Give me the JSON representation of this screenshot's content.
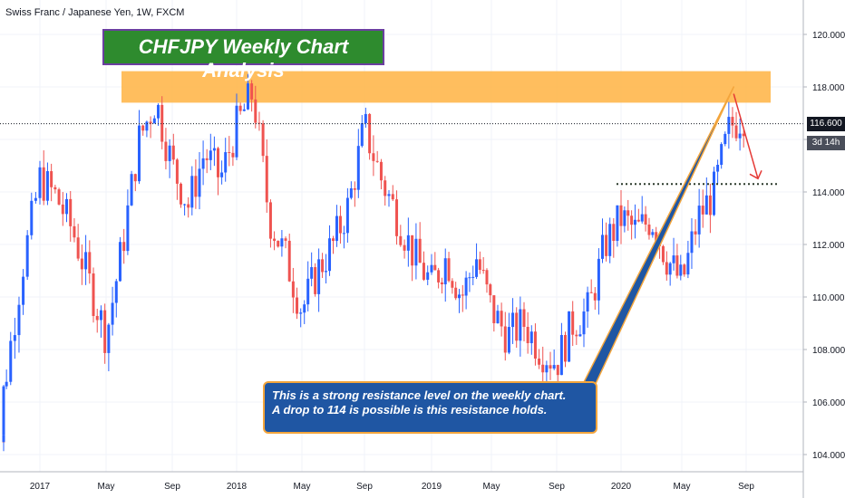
{
  "header": {
    "symbol_label": "Swiss Franc / Japanese Yen, 1W, FXCM"
  },
  "annotations": {
    "title": "CHFJPY Weekly Chart Analysis",
    "callout_line1": "This is a strong resistance level on the weekly chart.",
    "callout_line2": "A drop to 114 is possible is this resistance holds."
  },
  "price_axis": {
    "current_price": "116.600",
    "countdown": "3d 14h",
    "ticks": [
      "120.000",
      "118.000",
      "116.000",
      "114.000",
      "112.000",
      "110.000",
      "108.000",
      "106.000",
      "104.000"
    ]
  },
  "time_axis": {
    "ticks": [
      "2017",
      "May",
      "Sep",
      "2018",
      "May",
      "Sep",
      "2019",
      "May",
      "Sep",
      "2020",
      "May",
      "Sep"
    ]
  },
  "colors": {
    "up": "#2962ff",
    "down": "#ef5350",
    "resistance_zone": "#ffb74d",
    "title_bg": "#2e8b2e",
    "callout_bg": "#1f56a3",
    "trendline": "#f3a53c",
    "arrow": "#e53935"
  },
  "chart_data": {
    "type": "candlestick",
    "timeframe": "1W",
    "x_range": [
      "2016-10",
      "2020-10"
    ],
    "ylim": [
      103.5,
      121.0
    ],
    "resistance_zone": [
      117.4,
      118.6
    ],
    "support_level": 114.3,
    "current_price": 116.6,
    "trendline": {
      "from": [
        "2020-01",
        113.0
      ],
      "to": [
        "2020-08",
        118.0
      ]
    },
    "projection": {
      "from": 117.6,
      "to": 114.3
    },
    "close_path": [
      {
        "x": "2016-10",
        "y": 104.5
      },
      {
        "x": "2016-11",
        "y": 106.5
      },
      {
        "x": "2016-12",
        "y": 111.0
      },
      {
        "x": "2017-01",
        "y": 114.5
      },
      {
        "x": "2017-02",
        "y": 113.8
      },
      {
        "x": "2017-03",
        "y": 112.5
      },
      {
        "x": "2017-04",
        "y": 110.5
      },
      {
        "x": "2017-05",
        "y": 108.5
      },
      {
        "x": "2017-06",
        "y": 112.0
      },
      {
        "x": "2017-07",
        "y": 116.0
      },
      {
        "x": "2017-08",
        "y": 117.5
      },
      {
        "x": "2017-09",
        "y": 115.0
      },
      {
        "x": "2017-10",
        "y": 113.5
      },
      {
        "x": "2017-11",
        "y": 115.5
      },
      {
        "x": "2017-12",
        "y": 114.5
      },
      {
        "x": "2018-01",
        "y": 116.5
      },
      {
        "x": "2018-02",
        "y": 117.8
      },
      {
        "x": "2018-03",
        "y": 113.0
      },
      {
        "x": "2018-04",
        "y": 111.5
      },
      {
        "x": "2018-05",
        "y": 109.5
      },
      {
        "x": "2018-06",
        "y": 111.0
      },
      {
        "x": "2018-07",
        "y": 112.0
      },
      {
        "x": "2018-08",
        "y": 113.5
      },
      {
        "x": "2018-09",
        "y": 116.5
      },
      {
        "x": "2018-10",
        "y": 114.5
      },
      {
        "x": "2018-11",
        "y": 113.0
      },
      {
        "x": "2018-12",
        "y": 111.5
      },
      {
        "x": "2019-01",
        "y": 110.5
      },
      {
        "x": "2019-02",
        "y": 111.5
      },
      {
        "x": "2019-03",
        "y": 110.0
      },
      {
        "x": "2019-04",
        "y": 111.5
      },
      {
        "x": "2019-05",
        "y": 109.5
      },
      {
        "x": "2019-06",
        "y": 108.5
      },
      {
        "x": "2019-07",
        "y": 109.0
      },
      {
        "x": "2019-08",
        "y": 108.0
      },
      {
        "x": "2019-09",
        "y": 107.5
      },
      {
        "x": "2019-10",
        "y": 109.0
      },
      {
        "x": "2019-11",
        "y": 109.5
      },
      {
        "x": "2019-12",
        "y": 112.0
      },
      {
        "x": "2020-01",
        "y": 113.0
      },
      {
        "x": "2020-02",
        "y": 112.5
      },
      {
        "x": "2020-03",
        "y": 113.0
      },
      {
        "x": "2020-04",
        "y": 111.5
      },
      {
        "x": "2020-05",
        "y": 110.5
      },
      {
        "x": "2020-06",
        "y": 113.0
      },
      {
        "x": "2020-07",
        "y": 114.0
      },
      {
        "x": "2020-08",
        "y": 116.5
      },
      {
        "x": "2020-09",
        "y": 117.0
      }
    ]
  }
}
